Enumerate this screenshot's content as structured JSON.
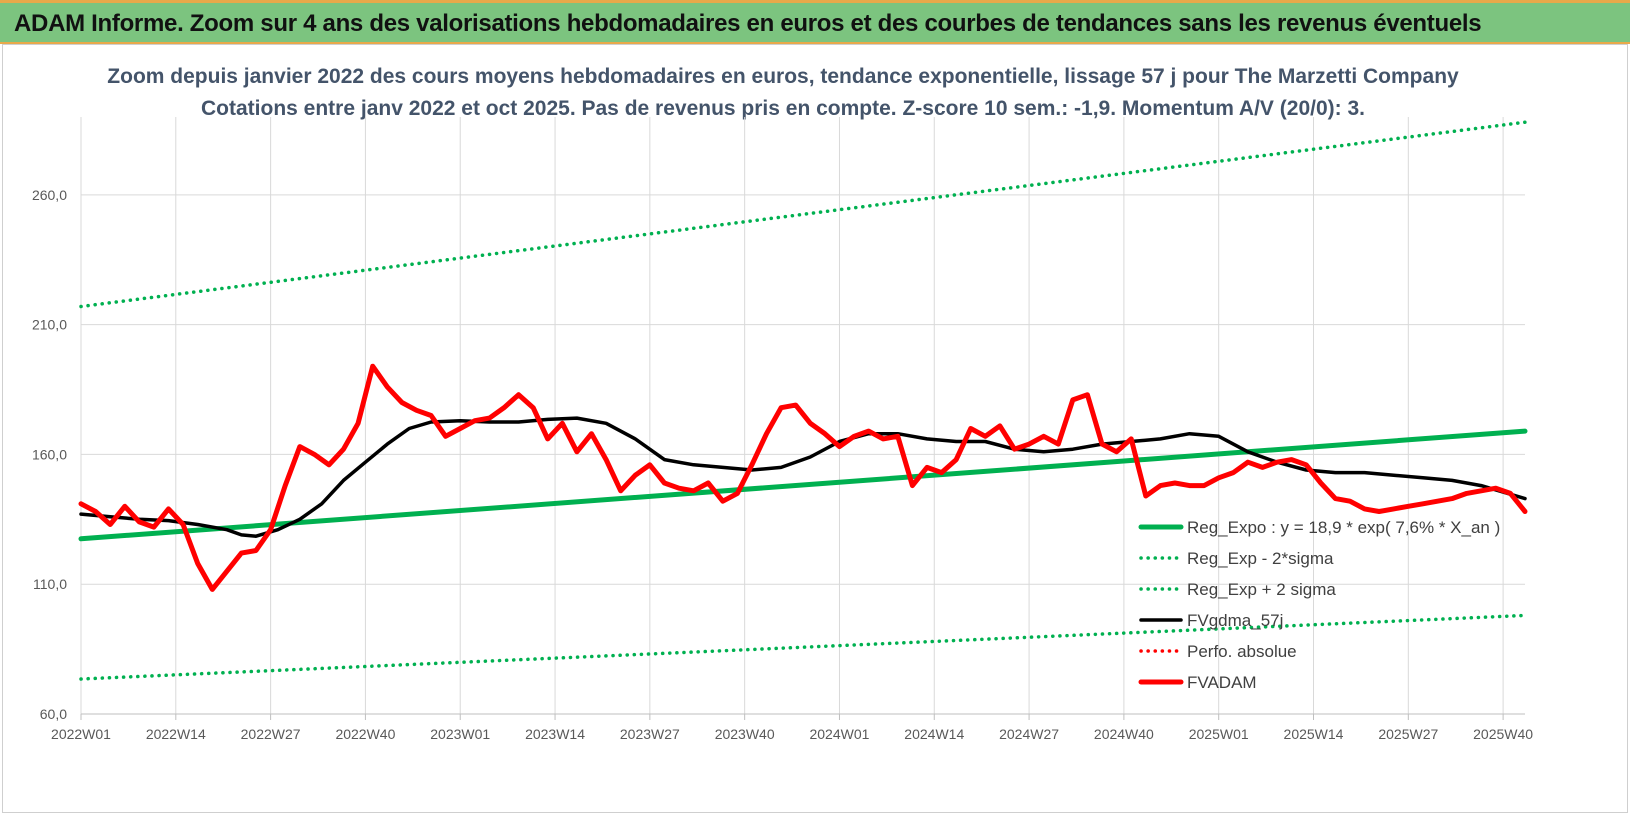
{
  "banner": {
    "title": "ADAM Informe. Zoom sur 4 ans des valorisations hebdomadaires en euros et des courbes de tendances sans les revenus éventuels"
  },
  "chart_data": {
    "type": "line",
    "title": "Zoom depuis janvier 2022 des cours moyens hebdomadaires en euros, tendance exponentielle, lissage 57 j pour The Marzetti Company",
    "subtitle": "Cotations entre janv 2022 et oct 2025. Pas de revenus pris en compte. Z-score 10 sem.: -1,9. Momentum A/V (20/0): 3.",
    "xlabel": "",
    "ylabel": "",
    "x_range": [
      0,
      198
    ],
    "ylim": [
      60,
      290
    ],
    "y_ticks": [
      60,
      110,
      160,
      210,
      260
    ],
    "y_tick_labels": [
      "60,0",
      "110,0",
      "160,0",
      "210,0",
      "260,0"
    ],
    "x_tick_positions": [
      0,
      13,
      26,
      39,
      52,
      65,
      78,
      91,
      104,
      117,
      130,
      143,
      156,
      169,
      182,
      195
    ],
    "x_tick_labels": [
      "2022W01",
      "2022W14",
      "2022W27",
      "2022W40",
      "2023W01",
      "2023W14",
      "2023W27",
      "2023W40",
      "2024W01",
      "2024W14",
      "2024W27",
      "2024W40",
      "2025W01",
      "2025W14",
      "2025W27",
      "2025W40"
    ],
    "grid": true,
    "legend_position": "right",
    "series": [
      {
        "name": "Reg_Expo : y = 18,9 * exp( 7,6% * X_an )",
        "color": "#00b050",
        "style": "solid-thick",
        "x": [
          0,
          198
        ],
        "values": [
          127.5,
          169.0
        ]
      },
      {
        "name": "Reg_Exp - 2*sigma",
        "color": "#00b050",
        "style": "dotted",
        "x": [
          0,
          198
        ],
        "values": [
          73.5,
          98.0
        ]
      },
      {
        "name": "Reg_Exp + 2 sigma",
        "color": "#00b050",
        "style": "dotted",
        "x": [
          0,
          198
        ],
        "values": [
          217.0,
          288.0
        ]
      },
      {
        "name": "FVgdma_57j",
        "color": "#000000",
        "style": "solid",
        "x": [
          0,
          4,
          8,
          12,
          16,
          20,
          22,
          24,
          27,
          30,
          33,
          36,
          39,
          42,
          45,
          48,
          52,
          56,
          60,
          64,
          68,
          72,
          76,
          80,
          84,
          88,
          92,
          96,
          100,
          104,
          108,
          112,
          116,
          120,
          124,
          128,
          132,
          136,
          140,
          144,
          148,
          152,
          156,
          160,
          164,
          168,
          172,
          176,
          180,
          184,
          188,
          192,
          198
        ],
        "values": [
          137,
          136,
          135,
          134.5,
          133,
          131,
          129,
          128.5,
          131,
          135,
          141,
          150,
          157,
          164,
          170,
          172.5,
          173,
          172.5,
          172.5,
          173.5,
          174,
          172,
          166,
          158,
          156,
          155,
          154,
          155,
          159,
          165,
          168,
          168,
          166,
          165,
          165,
          162,
          161,
          162,
          164,
          165,
          166,
          168,
          167,
          161,
          157,
          154,
          153,
          153,
          152,
          151,
          150,
          148,
          143
        ]
      },
      {
        "name": "Perfo. absolue",
        "color": "#ff0000",
        "style": "dotted",
        "x": [],
        "values": []
      },
      {
        "name": "FVADAM",
        "color": "#ff0000",
        "style": "solid-thick",
        "x": [
          0,
          2,
          4,
          6,
          8,
          10,
          12,
          14,
          16,
          18,
          20,
          22,
          24,
          26,
          28,
          30,
          32,
          34,
          36,
          38,
          40,
          42,
          44,
          46,
          48,
          50,
          52,
          54,
          56,
          58,
          60,
          62,
          64,
          66,
          68,
          70,
          72,
          74,
          76,
          78,
          80,
          82,
          84,
          86,
          88,
          90,
          92,
          94,
          96,
          98,
          100,
          102,
          104,
          106,
          108,
          110,
          112,
          114,
          116,
          118,
          120,
          122,
          124,
          126,
          128,
          130,
          132,
          134,
          136,
          138,
          140,
          142,
          144,
          146,
          148,
          150,
          152,
          154,
          156,
          158,
          160,
          162,
          164,
          166,
          168,
          170,
          172,
          174,
          176,
          178,
          180,
          182,
          184,
          186,
          188,
          190,
          192,
          194,
          196,
          198
        ],
        "values": [
          141,
          138,
          133,
          140,
          134,
          132,
          139,
          133,
          118,
          108,
          115,
          122,
          123,
          131,
          148,
          163,
          160,
          156,
          162,
          172,
          194,
          186,
          180,
          177,
          175,
          167,
          170,
          173,
          174,
          178,
          183,
          178,
          166,
          172,
          161,
          168,
          158,
          146,
          152,
          156,
          149,
          147,
          146,
          149,
          142,
          145,
          156,
          168,
          178,
          179,
          172,
          168,
          163,
          167,
          169,
          166,
          167,
          148,
          155,
          153,
          158,
          170,
          167,
          171,
          162,
          164,
          167,
          164,
          181,
          183,
          164,
          161,
          166,
          144,
          148,
          149,
          148,
          148,
          151,
          153,
          157,
          155,
          157,
          158,
          156,
          149,
          143,
          142,
          139,
          138,
          139,
          140,
          141,
          142,
          143,
          145,
          146,
          147,
          145,
          138
        ]
      }
    ]
  }
}
